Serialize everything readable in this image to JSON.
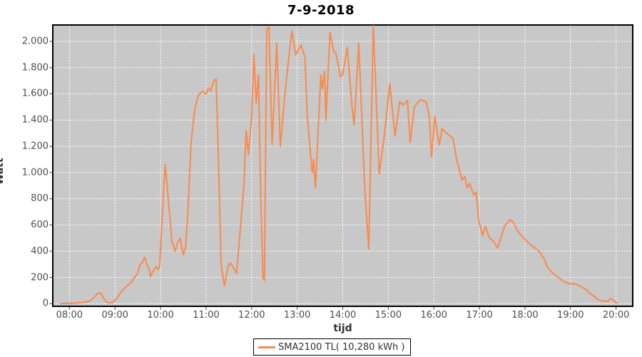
{
  "title": "7-9-2018",
  "y_axis": {
    "label": "Watt",
    "tick_values": [
      0,
      200,
      400,
      600,
      800,
      1000,
      1200,
      1400,
      1600,
      1800,
      2000
    ],
    "tick_labels": [
      "0",
      "200",
      "400",
      "600",
      "800",
      "1.000",
      "1.200",
      "1.400",
      "1.600",
      "1.800",
      "2.000"
    ]
  },
  "x_axis": {
    "label": "tijd",
    "tick_values": [
      8,
      9,
      10,
      11,
      12,
      13,
      14,
      15,
      16,
      17,
      18,
      19,
      20
    ],
    "tick_labels": [
      "08:00",
      "09:00",
      "10:00",
      "11:00",
      "12:00",
      "13:00",
      "14:00",
      "15:00",
      "16:00",
      "17:00",
      "18:00",
      "19:00",
      "20:00"
    ]
  },
  "legend": {
    "label": "SMA2100 TL( 10,280 kWh )"
  },
  "colors": {
    "line": "#fa8a4d",
    "plot_bg": "#c8c8c8",
    "grid": "#ffffff",
    "tick_text": "#4d4d4d",
    "border": "#000000",
    "tick_mark": "#555555"
  },
  "chart_data": {
    "type": "line",
    "title": "7-9-2018",
    "xlabel": "tijd",
    "ylabel": "Watt",
    "xlim": [
      7.65,
      20.35
    ],
    "ylim": [
      -15,
      2120
    ],
    "grid": true,
    "grid_style": "white-dashed",
    "legend_position": "bottom-center",
    "x_unit": "hours (time of day)",
    "y_unit": "W",
    "series": [
      {
        "name": "SMA2100 TL( 10,280 kWh )",
        "color": "#fa8a4d",
        "points": [
          [
            7.8,
            0
          ],
          [
            7.9,
            2
          ],
          [
            8.0,
            3
          ],
          [
            8.1,
            4
          ],
          [
            8.2,
            6
          ],
          [
            8.33,
            10
          ],
          [
            8.45,
            20
          ],
          [
            8.55,
            50
          ],
          [
            8.62,
            78
          ],
          [
            8.68,
            82
          ],
          [
            8.75,
            40
          ],
          [
            8.83,
            8
          ],
          [
            8.92,
            5
          ],
          [
            8.98,
            18
          ],
          [
            9.05,
            45
          ],
          [
            9.13,
            85
          ],
          [
            9.2,
            115
          ],
          [
            9.28,
            140
          ],
          [
            9.35,
            160
          ],
          [
            9.42,
            195
          ],
          [
            9.5,
            230
          ],
          [
            9.55,
            300
          ],
          [
            9.6,
            310
          ],
          [
            9.65,
            354
          ],
          [
            9.7,
            300
          ],
          [
            9.75,
            262
          ],
          [
            9.78,
            205
          ],
          [
            9.83,
            245
          ],
          [
            9.9,
            283
          ],
          [
            9.95,
            260
          ],
          [
            9.98,
            290
          ],
          [
            10.03,
            620
          ],
          [
            10.1,
            1060
          ],
          [
            10.15,
            880
          ],
          [
            10.2,
            680
          ],
          [
            10.25,
            480
          ],
          [
            10.32,
            398
          ],
          [
            10.38,
            470
          ],
          [
            10.43,
            500
          ],
          [
            10.5,
            372
          ],
          [
            10.55,
            430
          ],
          [
            10.6,
            700
          ],
          [
            10.67,
            1230
          ],
          [
            10.75,
            1480
          ],
          [
            10.83,
            1590
          ],
          [
            10.92,
            1620
          ],
          [
            11.0,
            1600
          ],
          [
            11.05,
            1645
          ],
          [
            11.1,
            1620
          ],
          [
            11.17,
            1700
          ],
          [
            11.22,
            1712
          ],
          [
            11.27,
            1100
          ],
          [
            11.33,
            300
          ],
          [
            11.4,
            135
          ],
          [
            11.48,
            280
          ],
          [
            11.53,
            310
          ],
          [
            11.6,
            275
          ],
          [
            11.67,
            230
          ],
          [
            11.75,
            560
          ],
          [
            11.83,
            900
          ],
          [
            11.88,
            1320
          ],
          [
            11.93,
            1140
          ],
          [
            12.0,
            1430
          ],
          [
            12.05,
            1900
          ],
          [
            12.1,
            1530
          ],
          [
            12.15,
            1745
          ],
          [
            12.2,
            800
          ],
          [
            12.25,
            195
          ],
          [
            12.28,
            178
          ],
          [
            12.33,
            2090
          ],
          [
            12.38,
            2110
          ],
          [
            12.45,
            1215
          ],
          [
            12.55,
            1990
          ],
          [
            12.63,
            1200
          ],
          [
            12.73,
            1600
          ],
          [
            12.88,
            2080
          ],
          [
            12.97,
            1897
          ],
          [
            13.08,
            1973
          ],
          [
            13.17,
            1880
          ],
          [
            13.22,
            1430
          ],
          [
            13.33,
            998
          ],
          [
            13.36,
            1100
          ],
          [
            13.4,
            883
          ],
          [
            13.52,
            1744
          ],
          [
            13.55,
            1640
          ],
          [
            13.6,
            1771
          ],
          [
            13.63,
            1400
          ],
          [
            13.72,
            2070
          ],
          [
            13.8,
            1925
          ],
          [
            13.85,
            1907
          ],
          [
            13.95,
            1730
          ],
          [
            14.0,
            1750
          ],
          [
            14.1,
            1955
          ],
          [
            14.2,
            1510
          ],
          [
            14.25,
            1362
          ],
          [
            14.35,
            1990
          ],
          [
            14.48,
            900
          ],
          [
            14.57,
            415
          ],
          [
            14.67,
            2120
          ],
          [
            14.8,
            990
          ],
          [
            14.92,
            1300
          ],
          [
            15.03,
            1680
          ],
          [
            15.15,
            1280
          ],
          [
            15.25,
            1540
          ],
          [
            15.33,
            1515
          ],
          [
            15.42,
            1550
          ],
          [
            15.48,
            1230
          ],
          [
            15.57,
            1500
          ],
          [
            15.7,
            1555
          ],
          [
            15.83,
            1540
          ],
          [
            15.9,
            1430
          ],
          [
            15.95,
            1120
          ],
          [
            16.02,
            1430
          ],
          [
            16.12,
            1210
          ],
          [
            16.18,
            1335
          ],
          [
            16.28,
            1300
          ],
          [
            16.42,
            1260
          ],
          [
            16.5,
            1100
          ],
          [
            16.62,
            943
          ],
          [
            16.68,
            970
          ],
          [
            16.73,
            883
          ],
          [
            16.78,
            916
          ],
          [
            16.88,
            828
          ],
          [
            16.93,
            850
          ],
          [
            16.98,
            643
          ],
          [
            17.07,
            518
          ],
          [
            17.13,
            589
          ],
          [
            17.22,
            501
          ],
          [
            17.3,
            480
          ],
          [
            17.4,
            425
          ],
          [
            17.55,
            590
          ],
          [
            17.67,
            640
          ],
          [
            17.75,
            620
          ],
          [
            17.83,
            560
          ],
          [
            17.92,
            520
          ],
          [
            18.0,
            490
          ],
          [
            18.1,
            455
          ],
          [
            18.2,
            430
          ],
          [
            18.33,
            390
          ],
          [
            18.42,
            340
          ],
          [
            18.5,
            272
          ],
          [
            18.62,
            230
          ],
          [
            18.75,
            195
          ],
          [
            18.87,
            165
          ],
          [
            19.0,
            150
          ],
          [
            19.08,
            152
          ],
          [
            19.17,
            140
          ],
          [
            19.25,
            125
          ],
          [
            19.33,
            110
          ],
          [
            19.42,
            80
          ],
          [
            19.5,
            60
          ],
          [
            19.58,
            35
          ],
          [
            19.67,
            22
          ],
          [
            19.75,
            18
          ],
          [
            19.83,
            18
          ],
          [
            19.88,
            40
          ],
          [
            19.93,
            28
          ],
          [
            20.0,
            8
          ],
          [
            20.03,
            5
          ]
        ]
      }
    ]
  }
}
